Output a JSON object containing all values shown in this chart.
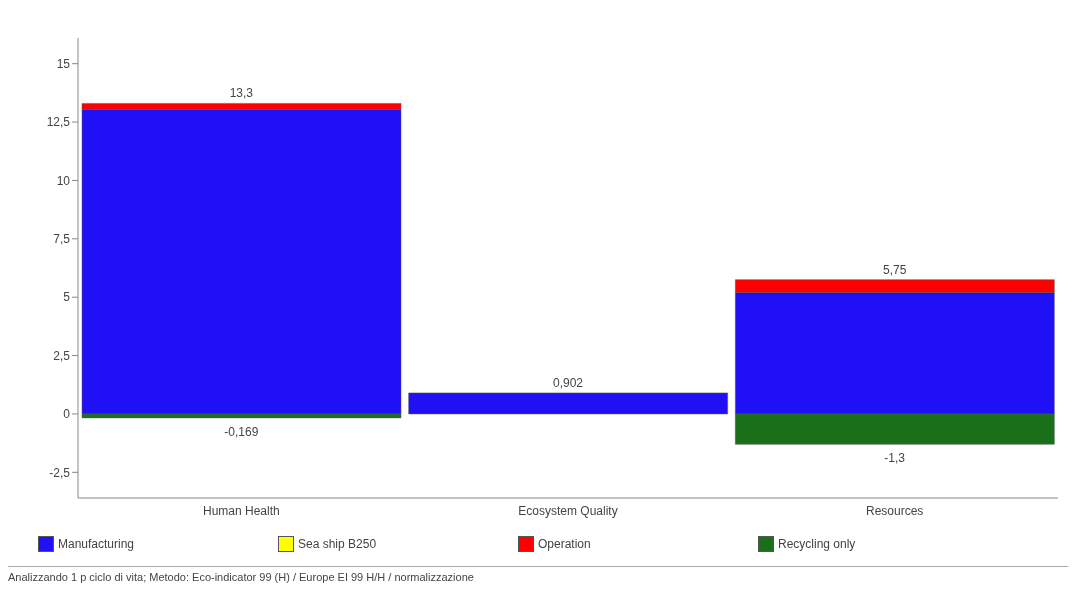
{
  "chart_data": {
    "type": "bar",
    "stacked": true,
    "categories": [
      "Human Health",
      "Ecosystem Quality",
      "Resources"
    ],
    "series": [
      {
        "name": "Manufacturing",
        "color": "#2010f5",
        "values": [
          13.05,
          0.902,
          5.2
        ]
      },
      {
        "name": "Sea ship B250",
        "color": "#ffff00",
        "values": [
          0,
          0,
          0
        ]
      },
      {
        "name": "Operation",
        "color": "#ff0000",
        "values": [
          0.25,
          0,
          0.55
        ]
      },
      {
        "name": "Recycling only",
        "color": "#1a7018",
        "values": [
          -0.169,
          0,
          -1.3
        ]
      }
    ],
    "ylim": [
      -3.6,
      16.1
    ],
    "yticks": [
      {
        "value": -2.5,
        "label": "-2,5"
      },
      0,
      {
        "value": 2.5,
        "label": "2,5"
      },
      5,
      {
        "value": 7.5,
        "label": "7,5"
      },
      10,
      {
        "value": 12.5,
        "label": "12,5"
      },
      15
    ],
    "grid": false,
    "legend": "bottom",
    "annotations": [
      {
        "text": "13,3",
        "x": "Human Health",
        "y": 13.3
      },
      {
        "text": "-0,169",
        "x": "Human Health",
        "y": -0.169
      },
      {
        "text": "0,902",
        "x": "Ecosystem Quality",
        "y": 0.902
      },
      {
        "text": "5,75",
        "x": "Resources",
        "y": 5.75
      },
      {
        "text": "-1,3",
        "x": "Resources",
        "y": -1.3
      },
      "Analizzando 1 p ciclo di vita; Metodo: Eco-indicator 99 (H) / Europe EI 99 H/H / normalizzazione"
    ]
  }
}
